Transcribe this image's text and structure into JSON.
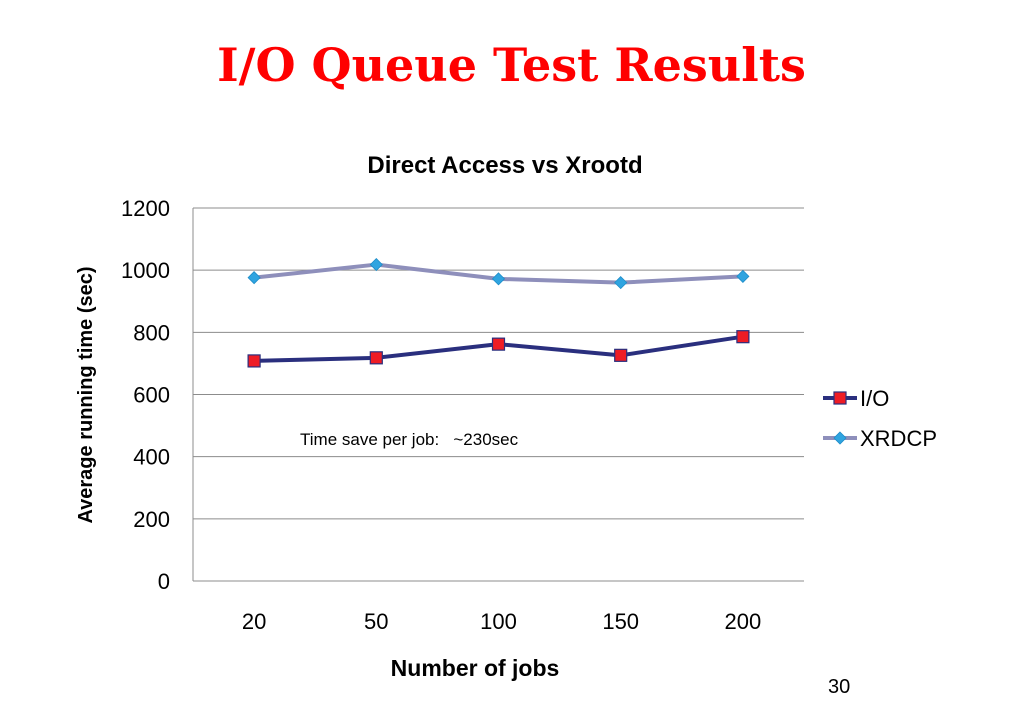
{
  "slide": {
    "title": "I/O Queue Test Results",
    "page_number": "30"
  },
  "chart_data": {
    "type": "line",
    "title": "Direct Access vs Xrootd",
    "xlabel": "Number of jobs",
    "ylabel": "Average running time (sec)",
    "categories": [
      "20",
      "50",
      "100",
      "150",
      "200"
    ],
    "ylim": [
      0,
      1200
    ],
    "yticks": [
      0,
      200,
      400,
      600,
      800,
      1000,
      1200
    ],
    "grid": true,
    "legend_position": "right",
    "annotation": "Time save per job:   ~230sec",
    "series": [
      {
        "name": "I/O",
        "values": [
          708,
          718,
          762,
          726,
          786
        ],
        "color": "#2a2f7e",
        "marker": "square",
        "marker_color": "#ee1c25"
      },
      {
        "name": "XRDCP",
        "values": [
          976,
          1018,
          972,
          960,
          980
        ],
        "color": "#8e8fbb",
        "marker": "diamond",
        "marker_color": "#2fa4e0"
      }
    ]
  }
}
